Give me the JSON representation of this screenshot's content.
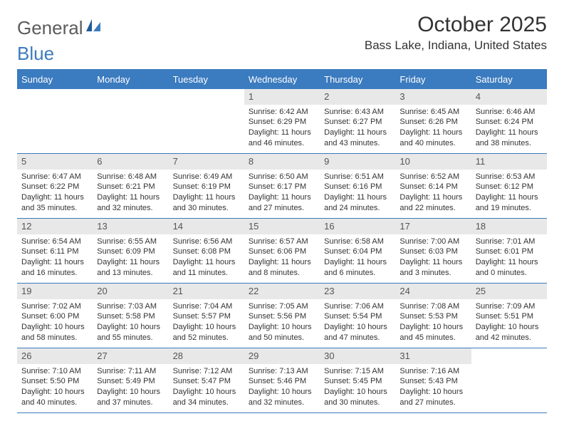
{
  "logo": {
    "word1": "General",
    "word2": "Blue",
    "text_color": "#5c5c5c",
    "accent_color": "#3b7bbf"
  },
  "title": "October 2025",
  "location": "Bass Lake, Indiana, United States",
  "colors": {
    "header_bg": "#3b7bbf",
    "header_text": "#ffffff",
    "daynum_bg": "#e8e8e8",
    "daynum_text": "#555555",
    "cell_text": "#333333",
    "rule": "#3b7bbf"
  },
  "day_headers": [
    "Sunday",
    "Monday",
    "Tuesday",
    "Wednesday",
    "Thursday",
    "Friday",
    "Saturday"
  ],
  "weeks": [
    [
      null,
      null,
      null,
      {
        "n": "1",
        "sunrise": "6:42 AM",
        "sunset": "6:29 PM",
        "dlh": 11,
        "dlm": 46
      },
      {
        "n": "2",
        "sunrise": "6:43 AM",
        "sunset": "6:27 PM",
        "dlh": 11,
        "dlm": 43
      },
      {
        "n": "3",
        "sunrise": "6:45 AM",
        "sunset": "6:26 PM",
        "dlh": 11,
        "dlm": 40
      },
      {
        "n": "4",
        "sunrise": "6:46 AM",
        "sunset": "6:24 PM",
        "dlh": 11,
        "dlm": 38
      }
    ],
    [
      {
        "n": "5",
        "sunrise": "6:47 AM",
        "sunset": "6:22 PM",
        "dlh": 11,
        "dlm": 35
      },
      {
        "n": "6",
        "sunrise": "6:48 AM",
        "sunset": "6:21 PM",
        "dlh": 11,
        "dlm": 32
      },
      {
        "n": "7",
        "sunrise": "6:49 AM",
        "sunset": "6:19 PM",
        "dlh": 11,
        "dlm": 30
      },
      {
        "n": "8",
        "sunrise": "6:50 AM",
        "sunset": "6:17 PM",
        "dlh": 11,
        "dlm": 27
      },
      {
        "n": "9",
        "sunrise": "6:51 AM",
        "sunset": "6:16 PM",
        "dlh": 11,
        "dlm": 24
      },
      {
        "n": "10",
        "sunrise": "6:52 AM",
        "sunset": "6:14 PM",
        "dlh": 11,
        "dlm": 22
      },
      {
        "n": "11",
        "sunrise": "6:53 AM",
        "sunset": "6:12 PM",
        "dlh": 11,
        "dlm": 19
      }
    ],
    [
      {
        "n": "12",
        "sunrise": "6:54 AM",
        "sunset": "6:11 PM",
        "dlh": 11,
        "dlm": 16
      },
      {
        "n": "13",
        "sunrise": "6:55 AM",
        "sunset": "6:09 PM",
        "dlh": 11,
        "dlm": 13
      },
      {
        "n": "14",
        "sunrise": "6:56 AM",
        "sunset": "6:08 PM",
        "dlh": 11,
        "dlm": 11
      },
      {
        "n": "15",
        "sunrise": "6:57 AM",
        "sunset": "6:06 PM",
        "dlh": 11,
        "dlm": 8
      },
      {
        "n": "16",
        "sunrise": "6:58 AM",
        "sunset": "6:04 PM",
        "dlh": 11,
        "dlm": 6
      },
      {
        "n": "17",
        "sunrise": "7:00 AM",
        "sunset": "6:03 PM",
        "dlh": 11,
        "dlm": 3
      },
      {
        "n": "18",
        "sunrise": "7:01 AM",
        "sunset": "6:01 PM",
        "dlh": 11,
        "dlm": 0
      }
    ],
    [
      {
        "n": "19",
        "sunrise": "7:02 AM",
        "sunset": "6:00 PM",
        "dlh": 10,
        "dlm": 58
      },
      {
        "n": "20",
        "sunrise": "7:03 AM",
        "sunset": "5:58 PM",
        "dlh": 10,
        "dlm": 55
      },
      {
        "n": "21",
        "sunrise": "7:04 AM",
        "sunset": "5:57 PM",
        "dlh": 10,
        "dlm": 52
      },
      {
        "n": "22",
        "sunrise": "7:05 AM",
        "sunset": "5:56 PM",
        "dlh": 10,
        "dlm": 50
      },
      {
        "n": "23",
        "sunrise": "7:06 AM",
        "sunset": "5:54 PM",
        "dlh": 10,
        "dlm": 47
      },
      {
        "n": "24",
        "sunrise": "7:08 AM",
        "sunset": "5:53 PM",
        "dlh": 10,
        "dlm": 45
      },
      {
        "n": "25",
        "sunrise": "7:09 AM",
        "sunset": "5:51 PM",
        "dlh": 10,
        "dlm": 42
      }
    ],
    [
      {
        "n": "26",
        "sunrise": "7:10 AM",
        "sunset": "5:50 PM",
        "dlh": 10,
        "dlm": 40
      },
      {
        "n": "27",
        "sunrise": "7:11 AM",
        "sunset": "5:49 PM",
        "dlh": 10,
        "dlm": 37
      },
      {
        "n": "28",
        "sunrise": "7:12 AM",
        "sunset": "5:47 PM",
        "dlh": 10,
        "dlm": 34
      },
      {
        "n": "29",
        "sunrise": "7:13 AM",
        "sunset": "5:46 PM",
        "dlh": 10,
        "dlm": 32
      },
      {
        "n": "30",
        "sunrise": "7:15 AM",
        "sunset": "5:45 PM",
        "dlh": 10,
        "dlm": 30
      },
      {
        "n": "31",
        "sunrise": "7:16 AM",
        "sunset": "5:43 PM",
        "dlh": 10,
        "dlm": 27
      },
      null
    ]
  ]
}
